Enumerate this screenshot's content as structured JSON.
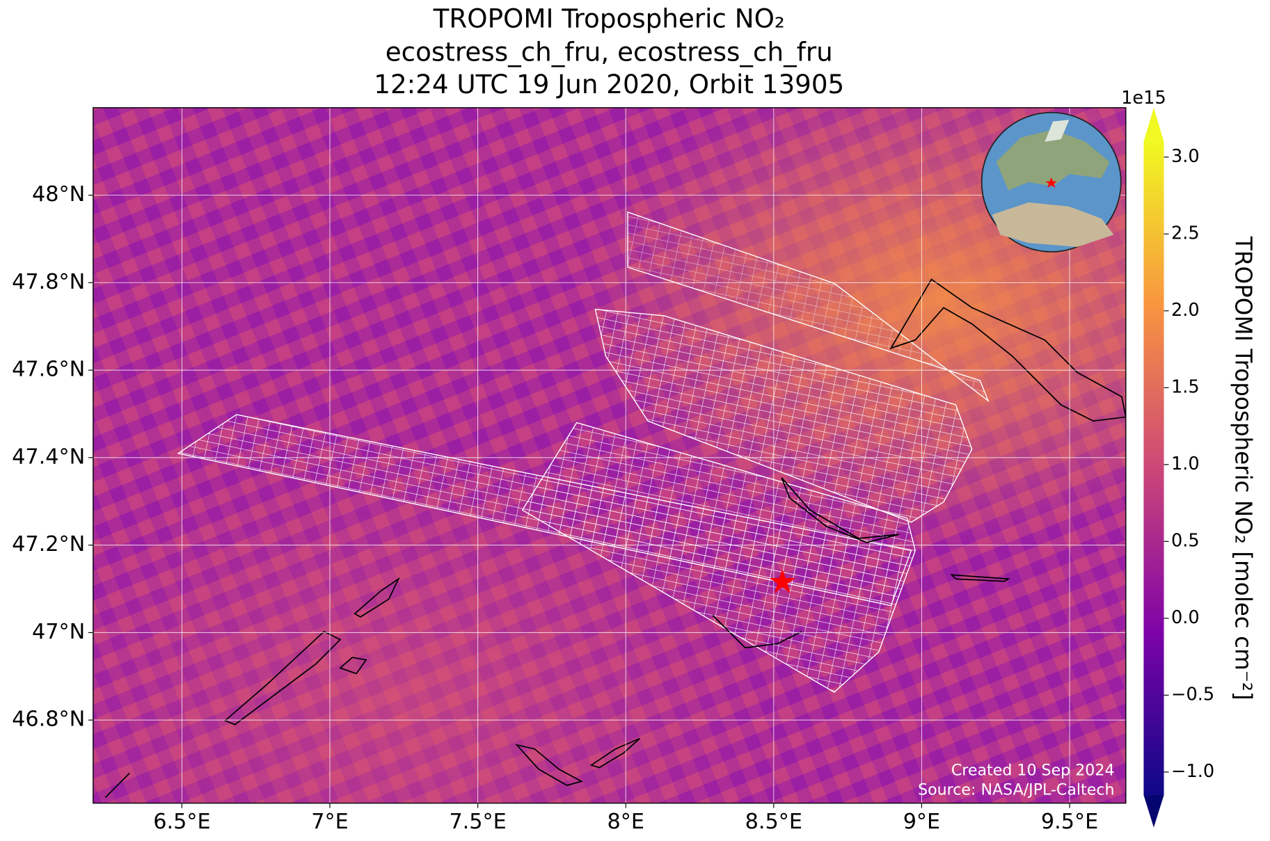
{
  "chart_data": {
    "type": "map",
    "title": [
      "TROPOMI Tropospheric NO₂",
      "ecostress_ch_fru, ecostress_ch_fru",
      "12:24 UTC 19 Jun 2020, Orbit 13905"
    ],
    "xlim": [
      6.2,
      9.69
    ],
    "ylim": [
      46.61,
      48.2
    ],
    "xticks": [
      {
        "value": 6.5,
        "label": "6.5°E"
      },
      {
        "value": 7,
        "label": "7°E"
      },
      {
        "value": 7.5,
        "label": "7.5°E"
      },
      {
        "value": 8,
        "label": "8°E"
      },
      {
        "value": 8.5,
        "label": "8.5°E"
      },
      {
        "value": 9,
        "label": "9°E"
      },
      {
        "value": 9.5,
        "label": "9.5°E"
      }
    ],
    "yticks": [
      {
        "value": 46.8,
        "label": "46.8°N"
      },
      {
        "value": 47,
        "label": "47°N"
      },
      {
        "value": 47.2,
        "label": "47.2°N"
      },
      {
        "value": 47.4,
        "label": "47.4°N"
      },
      {
        "value": 47.6,
        "label": "47.6°N"
      },
      {
        "value": 47.8,
        "label": "47.8°N"
      },
      {
        "value": 48,
        "label": "48°N"
      }
    ],
    "grid": true,
    "colorbar": {
      "label": "TROPOMI Tropospheric NO₂ [molec cm⁻²]",
      "offset_text": "1e15",
      "colormap": [
        "#0d0887",
        "#7e03a8",
        "#cc4778",
        "#f89540",
        "#f0f921"
      ],
      "clim": [
        -1.15,
        3.1
      ],
      "ticks": [
        {
          "value": -1,
          "label": "−1.0"
        },
        {
          "value": -0.5,
          "label": "−0.5"
        },
        {
          "value": 0,
          "label": "0.0"
        },
        {
          "value": 0.5,
          "label": "0.5"
        },
        {
          "value": 1,
          "label": "1.0"
        },
        {
          "value": 1.5,
          "label": "1.5"
        },
        {
          "value": 2,
          "label": "2.0"
        },
        {
          "value": 2.5,
          "label": "2.5"
        },
        {
          "value": 3,
          "label": "3.0"
        }
      ]
    },
    "credits": [
      "Created 10 Sep 2024",
      "Source: NASA/JPL-Caltech"
    ]
  }
}
